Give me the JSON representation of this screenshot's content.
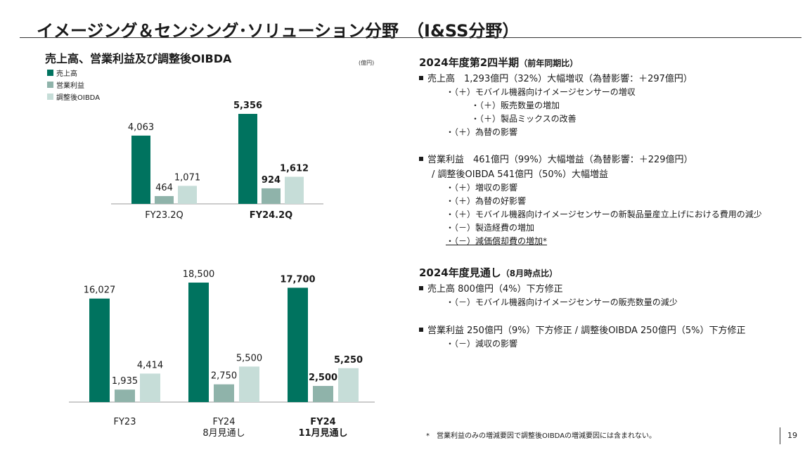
{
  "slide": {
    "title": "イメージング＆センシング･ソリューション分野　（I&SS分野）",
    "page_number": "19",
    "footnote": "*　営業利益のみの増減要因で調整後OIBDAの増減要因には含まれない。"
  },
  "charts_section": {
    "title": "売上高、営業利益及び調整後OIBDA",
    "unit": "(億円)",
    "legend": [
      "売上高",
      "営業利益",
      "調整後OIBDA"
    ]
  },
  "colors": {
    "sales": "#00735f",
    "operating_income": "#8fb3aa",
    "oibda": "#c6ddd8"
  },
  "chart_data": [
    {
      "type": "bar",
      "categories": [
        "FY23.2Q",
        "FY24.2Q"
      ],
      "series": [
        {
          "name": "売上高",
          "values": [
            4063,
            5356
          ]
        },
        {
          "name": "営業利益",
          "values": [
            464,
            924
          ]
        },
        {
          "name": "調整後OIBDA",
          "values": [
            1071,
            1612
          ]
        }
      ],
      "data_labels": [
        [
          "4,063",
          "464",
          "1,071"
        ],
        [
          "5,356",
          "924",
          "1,612"
        ]
      ],
      "bold_category": [
        false,
        true
      ]
    },
    {
      "type": "bar",
      "categories": [
        "FY23",
        "FY24\n8月見通し",
        "FY24\n11月見通し"
      ],
      "series": [
        {
          "name": "売上高",
          "values": [
            16027,
            18500,
            17700
          ]
        },
        {
          "name": "営業利益",
          "values": [
            1935,
            2750,
            2500
          ]
        },
        {
          "name": "調整後OIBDA",
          "values": [
            4414,
            5500,
            5250
          ]
        }
      ],
      "data_labels": [
        [
          "16,027",
          "1,935",
          "4,414"
        ],
        [
          "18,500",
          "2,750",
          "5,500"
        ],
        [
          "17,700",
          "2,500",
          "5,250"
        ]
      ],
      "bold_category": [
        false,
        false,
        true
      ]
    }
  ],
  "q2": {
    "title": "2024年度第2四半期",
    "title_note": "（前年同期比）",
    "sales_line": "売上高　1,293億円（32%）大幅増収（為替影響：＋297億円）",
    "sales_items": [
      "・（＋）モバイル機器向けイメージセンサーの増収",
      "・（＋）販売数量の増加",
      "・（＋）製品ミックスの改善",
      "・（＋）為替の影響"
    ],
    "op_line": "営業利益　461億円（99%）大幅増益（為替影響：＋229億円）",
    "oibda_line": "/ 調整後OIBDA 541億円（50%）大幅増益",
    "op_items": [
      "・（＋）増収の影響",
      "・（＋）為替の好影響",
      "・（＋）モバイル機器向けイメージセンサーの新製品量産立上げにおける費用の減少",
      "・（－）製造経費の増加",
      "・（－）減価償却費の増加*"
    ]
  },
  "outlook": {
    "title": "2024年度見通し",
    "title_note": "（8月時点比）",
    "sales_line": "売上高  800億円（4%）下方修正",
    "sales_item": "・（－）モバイル機器向けイメージセンサーの販売数量の減少",
    "op_line": "営業利益  250億円（9%）下方修正 / 調整後OIBDA 250億円（5%）下方修正",
    "op_item": "・（－）減収の影響"
  }
}
